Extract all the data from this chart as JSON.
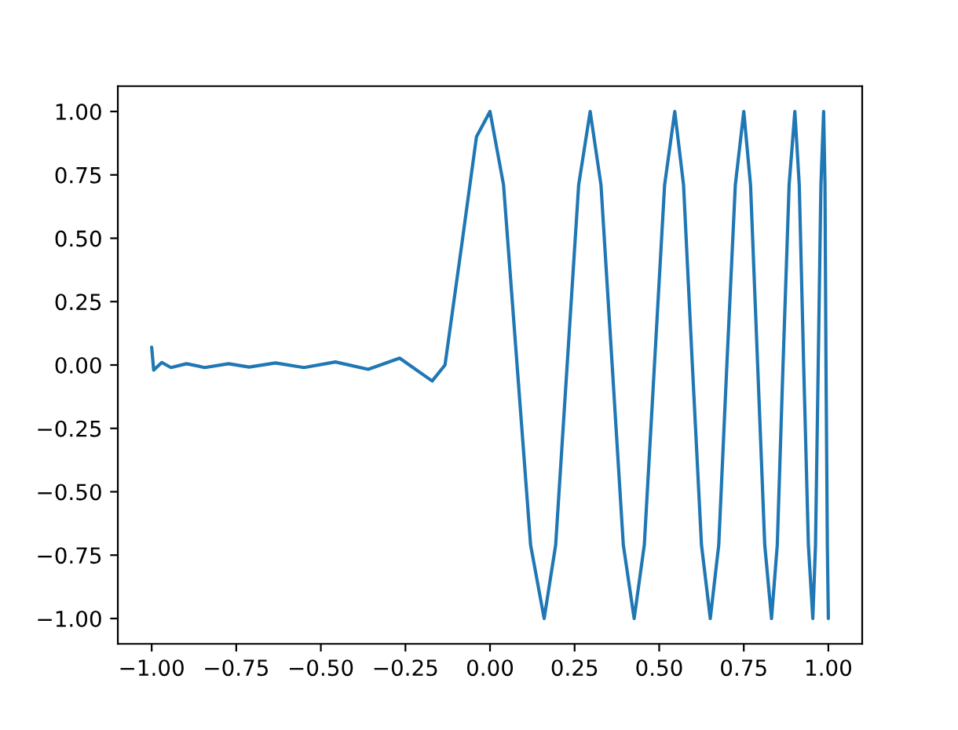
{
  "chart_data": {
    "type": "line",
    "x": [
      -1.0,
      -0.994,
      -0.97,
      -0.943,
      -0.897,
      -0.843,
      -0.773,
      -0.712,
      -0.634,
      -0.55,
      -0.457,
      -0.36,
      -0.267,
      -0.171,
      -0.133,
      -0.083,
      -0.04,
      0.0,
      0.04,
      0.08,
      0.12,
      0.16,
      0.194,
      0.228,
      0.262,
      0.296,
      0.328,
      0.361,
      0.394,
      0.426,
      0.456,
      0.486,
      0.516,
      0.546,
      0.572,
      0.598,
      0.625,
      0.651,
      0.676,
      0.7,
      0.725,
      0.75,
      0.77,
      0.791,
      0.812,
      0.832,
      0.849,
      0.866,
      0.884,
      0.901,
      0.914,
      0.927,
      0.941,
      0.954,
      0.962,
      0.97,
      0.978,
      0.986,
      0.99,
      0.993,
      0.997,
      1.0
    ],
    "series": [
      {
        "color": "#1f77b4",
        "values": [
          0.07,
          -0.02,
          0.01,
          -0.01,
          0.005,
          -0.01,
          0.005,
          -0.008,
          0.008,
          -0.01,
          0.012,
          -0.017,
          0.027,
          -0.063,
          0.0,
          0.48,
          0.9,
          1.0,
          0.71,
          0.0,
          -0.71,
          -1.0,
          -0.71,
          0.0,
          0.71,
          1.0,
          0.71,
          0.0,
          -0.71,
          -1.0,
          -0.71,
          0.0,
          0.71,
          1.0,
          0.71,
          0.0,
          -0.71,
          -1.0,
          -0.71,
          0.0,
          0.71,
          1.0,
          0.71,
          0.0,
          -0.71,
          -1.0,
          -0.71,
          0.0,
          0.71,
          1.0,
          0.71,
          0.0,
          -0.71,
          -1.0,
          -0.71,
          0.0,
          0.71,
          1.0,
          0.71,
          0.0,
          -0.71,
          -1.0
        ]
      }
    ],
    "xlim": [
      -1.1,
      1.1
    ],
    "ylim": [
      -1.1,
      1.1
    ],
    "xticks": [
      {
        "value": -1,
        "label": "−1.00"
      },
      {
        "value": -0.75,
        "label": "−0.75"
      },
      {
        "value": -0.5,
        "label": "−0.50"
      },
      {
        "value": -0.25,
        "label": "−0.25"
      },
      {
        "value": 0,
        "label": "0.00"
      },
      {
        "value": 0.25,
        "label": "0.25"
      },
      {
        "value": 0.5,
        "label": "0.50"
      },
      {
        "value": 0.75,
        "label": "0.75"
      },
      {
        "value": 1,
        "label": "1.00"
      }
    ],
    "yticks": [
      {
        "value": -1,
        "label": "−1.00"
      },
      {
        "value": -0.75,
        "label": "−0.75"
      },
      {
        "value": -0.5,
        "label": "−0.50"
      },
      {
        "value": -0.25,
        "label": "−0.25"
      },
      {
        "value": 0,
        "label": "0.00"
      },
      {
        "value": 0.25,
        "label": "0.25"
      },
      {
        "value": 0.5,
        "label": "0.50"
      },
      {
        "value": 0.75,
        "label": "0.75"
      },
      {
        "value": 1,
        "label": "1.00"
      }
    ]
  }
}
